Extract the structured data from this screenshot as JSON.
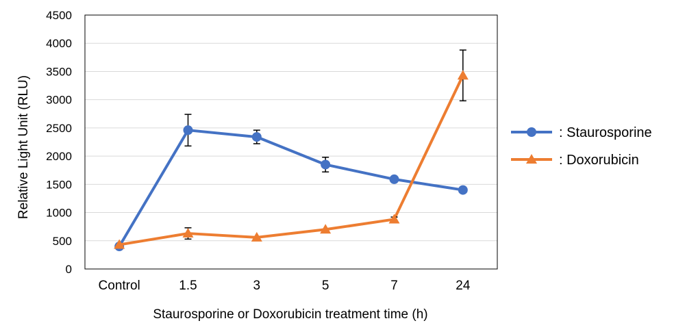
{
  "chart_data": {
    "type": "line",
    "categories": [
      "Control",
      "1.5",
      "3",
      "5",
      "7",
      "24"
    ],
    "xlabel": "Staurosporine or Doxorubicin treatment time (h)",
    "ylabel": "Relative Light Unit (RLU)",
    "ylim": [
      0,
      4500
    ],
    "yticks": [
      0,
      500,
      1000,
      1500,
      2000,
      2500,
      3000,
      3500,
      4000,
      4500
    ],
    "yticklabels": [
      "0",
      "500",
      "1000",
      "1500",
      "2000",
      "2500",
      "3000",
      "3500",
      "4000",
      "4500"
    ],
    "grid": "horizontal",
    "legend_position": "right",
    "series": [
      {
        "name": ": Staurosporine",
        "marker": "circle",
        "color": "#4472C4",
        "values": [
          400,
          2460,
          2340,
          1850,
          1590,
          1400
        ],
        "error": [
          0,
          280,
          120,
          130,
          0,
          30
        ]
      },
      {
        "name": ": Doxorubicin",
        "marker": "triangle",
        "color": "#ED7D31",
        "values": [
          430,
          630,
          560,
          700,
          880,
          3430
        ],
        "error": [
          0,
          100,
          0,
          0,
          40,
          450
        ]
      }
    ]
  }
}
